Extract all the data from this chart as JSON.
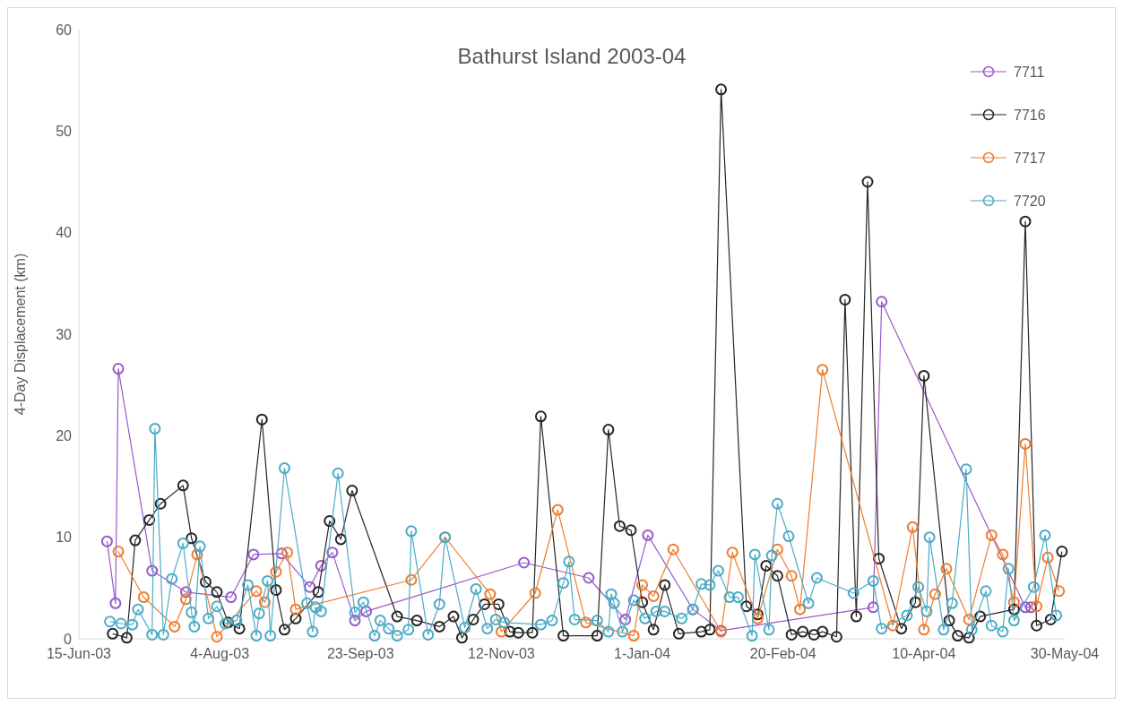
{
  "chart_data": {
    "type": "line",
    "title": "Bathurst Island 2003-04",
    "ylabel": "4-Day Displacement (km)",
    "xlim": [
      "2003-06-15",
      "2004-05-30"
    ],
    "xticks": [
      {
        "value": "2003-06-15",
        "label": "15-Jun-03"
      },
      {
        "value": "2003-08-04",
        "label": "4-Aug-03"
      },
      {
        "value": "2003-09-23",
        "label": "23-Sep-03"
      },
      {
        "value": "2003-11-12",
        "label": "12-Nov-03"
      },
      {
        "value": "2004-01-01",
        "label": "1-Jan-04"
      },
      {
        "value": "2004-02-20",
        "label": "20-Feb-04"
      },
      {
        "value": "2004-04-10",
        "label": "10-Apr-04"
      },
      {
        "value": "2004-05-30",
        "label": "30-May-04"
      }
    ],
    "ylim": [
      0,
      60
    ],
    "yticks": [
      0,
      10,
      20,
      30,
      40,
      50,
      60
    ],
    "grid": false,
    "legend": "top right",
    "marker": "circle",
    "line_style": "solid",
    "series": [
      {
        "name": "7711",
        "color": "#9b59c9",
        "x": [
          "2003-06-25",
          "2003-06-28",
          "2003-06-29",
          "2003-07-11",
          "2003-07-23",
          "2003-08-08",
          "2003-08-16",
          "2003-08-26",
          "2003-09-05",
          "2003-09-09",
          "2003-09-13",
          "2003-09-21",
          "2003-09-25",
          "2003-11-20",
          "2003-12-13",
          "2003-12-26",
          "2004-01-03",
          "2004-01-19",
          "2004-01-29",
          "2004-03-23",
          "2004-03-26",
          "2004-05-16",
          "2004-05-18"
        ],
        "values": [
          9.6,
          3.5,
          26.6,
          6.7,
          4.6,
          4.1,
          8.3,
          8.4,
          5.1,
          7.2,
          8.5,
          1.8,
          2.7,
          7.5,
          6.0,
          1.9,
          10.2,
          2.9,
          0.8,
          3.1,
          33.2,
          3.1,
          3.1
        ]
      },
      {
        "name": "7716",
        "color": "#262626",
        "x": [
          "2003-06-27",
          "2003-07-02",
          "2003-07-05",
          "2003-07-10",
          "2003-07-14",
          "2003-07-22",
          "2003-07-25",
          "2003-07-30",
          "2003-08-03",
          "2003-08-07",
          "2003-08-11",
          "2003-08-19",
          "2003-08-24",
          "2003-08-27",
          "2003-08-31",
          "2003-09-08",
          "2003-09-12",
          "2003-09-16",
          "2003-09-20",
          "2003-10-06",
          "2003-10-13",
          "2003-10-21",
          "2003-10-26",
          "2003-10-29",
          "2003-11-02",
          "2003-11-06",
          "2003-11-11",
          "2003-11-15",
          "2003-11-18",
          "2003-11-23",
          "2003-11-26",
          "2003-12-04",
          "2003-12-16",
          "2003-12-20",
          "2003-12-24",
          "2003-12-28",
          "2004-01-01",
          "2004-01-05",
          "2004-01-09",
          "2004-01-14",
          "2004-01-22",
          "2004-01-25",
          "2004-01-29",
          "2004-02-07",
          "2004-02-11",
          "2004-02-14",
          "2004-02-18",
          "2004-02-23",
          "2004-02-27",
          "2004-03-02",
          "2004-03-05",
          "2004-03-10",
          "2004-03-13",
          "2004-03-17",
          "2004-03-21",
          "2004-03-25",
          "2004-04-02",
          "2004-04-07",
          "2004-04-10",
          "2004-04-19",
          "2004-04-22",
          "2004-04-26",
          "2004-04-30",
          "2004-05-12",
          "2004-05-16",
          "2004-05-20",
          "2004-05-25",
          "2004-05-29"
        ],
        "values": [
          0.5,
          0.1,
          9.7,
          11.7,
          13.3,
          15.1,
          9.9,
          5.6,
          4.6,
          1.6,
          1.0,
          21.6,
          4.8,
          0.9,
          2.0,
          4.6,
          11.6,
          9.8,
          14.6,
          2.2,
          1.8,
          1.2,
          2.2,
          0.1,
          1.9,
          3.4,
          3.4,
          0.7,
          0.6,
          0.6,
          21.9,
          0.3,
          0.3,
          20.6,
          11.1,
          10.7,
          3.6,
          0.9,
          5.3,
          0.5,
          0.7,
          0.9,
          54.1,
          3.2,
          2.4,
          7.2,
          6.2,
          0.4,
          0.7,
          0.4,
          0.7,
          0.2,
          33.4,
          2.2,
          45.0,
          7.9,
          1.0,
          3.6,
          25.9,
          1.8,
          0.3,
          0.1,
          2.2,
          2.9,
          41.1,
          1.3,
          1.9,
          8.6
        ]
      },
      {
        "name": "7717",
        "color": "#ed7d31",
        "x": [
          "2003-06-29",
          "2003-07-08",
          "2003-07-19",
          "2003-07-23",
          "2003-07-27",
          "2003-08-03",
          "2003-08-17",
          "2003-08-20",
          "2003-08-24",
          "2003-08-28",
          "2003-08-31",
          "2003-10-11",
          "2003-10-23",
          "2003-11-08",
          "2003-11-12",
          "2003-11-24",
          "2003-12-02",
          "2003-12-12",
          "2003-12-29",
          "2004-01-01",
          "2004-01-05",
          "2004-01-12",
          "2004-01-29",
          "2004-02-02",
          "2004-02-11",
          "2004-02-18",
          "2004-02-23",
          "2004-02-26",
          "2004-03-05",
          "2004-03-30",
          "2004-04-06",
          "2004-04-10",
          "2004-04-14",
          "2004-04-18",
          "2004-04-26",
          "2004-05-04",
          "2004-05-08",
          "2004-05-12",
          "2004-05-16",
          "2004-05-20",
          "2004-05-24",
          "2004-05-28"
        ],
        "values": [
          8.6,
          4.1,
          1.2,
          3.9,
          8.3,
          0.2,
          4.7,
          3.6,
          6.6,
          8.5,
          2.9,
          5.8,
          10.0,
          4.4,
          0.7,
          4.5,
          12.7,
          1.6,
          0.3,
          5.3,
          4.2,
          8.8,
          0.7,
          8.5,
          2.0,
          8.8,
          6.2,
          2.9,
          26.5,
          1.3,
          11.0,
          0.9,
          4.4,
          6.9,
          1.9,
          10.2,
          8.3,
          3.6,
          19.2,
          3.2,
          8.0,
          4.7
        ]
      },
      {
        "name": "7720",
        "color": "#4bacc6",
        "x": [
          "2003-06-26",
          "2003-06-30",
          "2003-07-04",
          "2003-07-06",
          "2003-07-11",
          "2003-07-12",
          "2003-07-15",
          "2003-07-18",
          "2003-07-22",
          "2003-07-25",
          "2003-07-26",
          "2003-07-28",
          "2003-07-31",
          "2003-08-03",
          "2003-08-06",
          "2003-08-10",
          "2003-08-14",
          "2003-08-17",
          "2003-08-18",
          "2003-08-21",
          "2003-08-22",
          "2003-08-27",
          "2003-09-04",
          "2003-09-06",
          "2003-09-07",
          "2003-09-09",
          "2003-09-15",
          "2003-09-21",
          "2003-09-24",
          "2003-09-28",
          "2003-09-30",
          "2003-10-03",
          "2003-10-06",
          "2003-10-10",
          "2003-10-11",
          "2003-10-17",
          "2003-10-21",
          "2003-10-23",
          "2003-10-30",
          "2003-11-03",
          "2003-11-07",
          "2003-11-10",
          "2003-11-13",
          "2003-11-26",
          "2003-11-30",
          "2003-12-04",
          "2003-12-06",
          "2003-12-08",
          "2003-12-16",
          "2003-12-20",
          "2003-12-21",
          "2003-12-22",
          "2003-12-25",
          "2003-12-29",
          "2004-01-02",
          "2004-01-06",
          "2004-01-09",
          "2004-01-15",
          "2004-01-19",
          "2004-01-22",
          "2004-01-25",
          "2004-01-28",
          "2004-02-01",
          "2004-02-04",
          "2004-02-09",
          "2004-02-10",
          "2004-02-15",
          "2004-02-16",
          "2004-02-18",
          "2004-02-22",
          "2004-02-29",
          "2004-03-03",
          "2004-03-16",
          "2004-03-23",
          "2004-03-26",
          "2004-04-04",
          "2004-04-08",
          "2004-04-11",
          "2004-04-12",
          "2004-04-17",
          "2004-04-20",
          "2004-04-25",
          "2004-04-27",
          "2004-05-02",
          "2004-05-04",
          "2004-05-08",
          "2004-05-10",
          "2004-05-12",
          "2004-05-19",
          "2004-05-23",
          "2004-05-27"
        ],
        "values": [
          1.7,
          1.5,
          1.4,
          2.9,
          0.4,
          20.7,
          0.4,
          5.9,
          9.4,
          2.6,
          1.2,
          9.1,
          2.0,
          3.2,
          1.5,
          1.8,
          5.3,
          0.3,
          2.5,
          5.7,
          0.3,
          16.8,
          3.5,
          0.7,
          3.1,
          2.7,
          16.3,
          2.6,
          3.6,
          0.3,
          1.8,
          1.0,
          0.3,
          0.9,
          10.6,
          0.4,
          3.4,
          10.0,
          1.1,
          4.9,
          1.0,
          1.9,
          1.6,
          1.4,
          1.8,
          5.5,
          7.6,
          1.9,
          1.8,
          0.7,
          4.4,
          3.5,
          0.7,
          3.8,
          2.0,
          2.7,
          2.7,
          2.0,
          2.9,
          5.4,
          5.3,
          6.7,
          4.1,
          4.1,
          0.3,
          8.3,
          0.9,
          8.2,
          13.3,
          10.1,
          3.5,
          6.0,
          4.5,
          5.7,
          1.0,
          2.3,
          5.1,
          2.7,
          10.0,
          0.9,
          3.5,
          16.7,
          0.9,
          4.7,
          1.3,
          0.7,
          6.9,
          1.8,
          5.1,
          10.2,
          2.3
        ]
      }
    ]
  }
}
